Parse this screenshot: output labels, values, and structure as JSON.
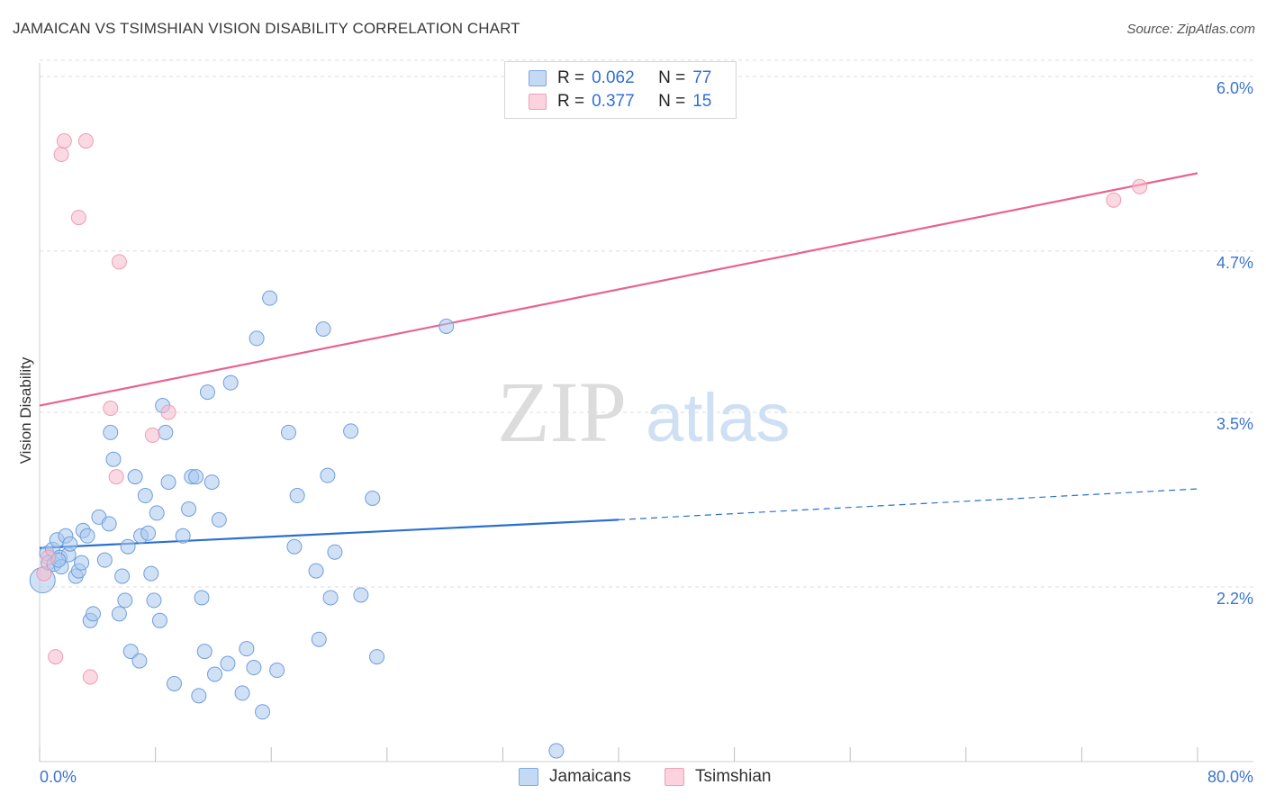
{
  "title": "JAMAICAN VS TSIMSHIAN VISION DISABILITY CORRELATION CHART",
  "source": "Source: ZipAtlas.com",
  "watermark": {
    "zip": "ZIP",
    "atlas": "atlas"
  },
  "legend": {
    "rows": [
      {
        "r_label": "R =",
        "r_value": "0.062",
        "n_label": "N =",
        "n_value": "77",
        "color": "#a9c8ef"
      },
      {
        "r_label": "R =",
        "r_value": "0.377",
        "n_label": "N =",
        "n_value": "15",
        "color": "#f7b9cb"
      }
    ]
  },
  "bottom_legend": [
    {
      "label": "Jamaicans",
      "color": "#a9c8ef"
    },
    {
      "label": "Tsimshian",
      "color": "#f7b9cb"
    }
  ],
  "chart_data": {
    "type": "scatter",
    "title": "JAMAICAN VS TSIMSHIAN VISION DISABILITY CORRELATION CHART",
    "xlabel": "",
    "ylabel": "Vision Disability",
    "xlim": [
      0,
      80
    ],
    "ylim": [
      0.9,
      6.1
    ],
    "x_tick_labels": [
      "0.0%",
      "80.0%"
    ],
    "y_ticks": [
      2.2,
      3.5,
      4.7,
      6.0
    ],
    "y_tick_labels": [
      "2.2%",
      "3.5%",
      "4.7%",
      "6.0%"
    ],
    "grid": true,
    "legend_position": "top-center",
    "series": [
      {
        "name": "Jamaicans",
        "color": "#2b6fd0",
        "fill": "#a9c8ef",
        "points": [
          [
            0.2,
            2.25
          ],
          [
            0.5,
            2.45
          ],
          [
            0.6,
            2.38
          ],
          [
            0.9,
            2.48
          ],
          [
            1.0,
            2.37
          ],
          [
            1.2,
            2.55
          ],
          [
            1.4,
            2.42
          ],
          [
            1.5,
            2.35
          ],
          [
            1.8,
            2.58
          ],
          [
            2.0,
            2.44
          ],
          [
            2.5,
            2.28
          ],
          [
            2.7,
            2.32
          ],
          [
            2.9,
            2.38
          ],
          [
            3.0,
            2.62
          ],
          [
            3.3,
            2.58
          ],
          [
            3.5,
            1.95
          ],
          [
            3.7,
            2.0
          ],
          [
            4.1,
            2.72
          ],
          [
            4.5,
            2.4
          ],
          [
            4.8,
            2.67
          ],
          [
            4.9,
            3.35
          ],
          [
            5.1,
            3.15
          ],
          [
            5.5,
            2.0
          ],
          [
            5.7,
            2.28
          ],
          [
            5.9,
            2.1
          ],
          [
            6.1,
            2.5
          ],
          [
            6.3,
            1.72
          ],
          [
            6.6,
            3.02
          ],
          [
            6.9,
            1.65
          ],
          [
            7.0,
            2.58
          ],
          [
            7.3,
            2.88
          ],
          [
            7.5,
            2.6
          ],
          [
            7.7,
            2.3
          ],
          [
            7.9,
            2.1
          ],
          [
            8.1,
            2.75
          ],
          [
            8.3,
            1.95
          ],
          [
            8.5,
            3.55
          ],
          [
            8.7,
            3.35
          ],
          [
            8.9,
            2.98
          ],
          [
            9.3,
            1.48
          ],
          [
            9.9,
            2.58
          ],
          [
            10.3,
            2.78
          ],
          [
            10.5,
            3.02
          ],
          [
            10.8,
            3.02
          ],
          [
            11.0,
            1.39
          ],
          [
            11.2,
            2.12
          ],
          [
            11.4,
            1.72
          ],
          [
            11.6,
            3.65
          ],
          [
            11.9,
            2.98
          ],
          [
            12.1,
            1.55
          ],
          [
            12.4,
            2.7
          ],
          [
            13.0,
            1.63
          ],
          [
            13.2,
            3.72
          ],
          [
            14.0,
            1.41
          ],
          [
            14.3,
            1.74
          ],
          [
            14.8,
            1.6
          ],
          [
            15.0,
            4.05
          ],
          [
            15.4,
            1.27
          ],
          [
            15.9,
            4.35
          ],
          [
            16.4,
            1.58
          ],
          [
            17.2,
            3.35
          ],
          [
            17.6,
            2.5
          ],
          [
            17.8,
            2.88
          ],
          [
            19.1,
            2.32
          ],
          [
            19.3,
            1.81
          ],
          [
            19.6,
            4.12
          ],
          [
            19.9,
            3.03
          ],
          [
            20.1,
            2.12
          ],
          [
            20.4,
            2.46
          ],
          [
            21.5,
            3.36
          ],
          [
            22.2,
            2.14
          ],
          [
            23.0,
            2.86
          ],
          [
            23.3,
            1.68
          ],
          [
            28.1,
            4.14
          ],
          [
            35.7,
            0.98
          ],
          [
            1.3,
            2.4
          ],
          [
            2.1,
            2.52
          ]
        ],
        "trend": {
          "x0": 0,
          "y0": 2.49,
          "x1": 40,
          "y1": 2.7,
          "dash_to_x": 80,
          "dash_to_y": 2.93
        }
      },
      {
        "name": "Tsimshian",
        "color": "#e8638f",
        "fill": "#f7b9cb",
        "points": [
          [
            0.3,
            2.3
          ],
          [
            0.6,
            2.42
          ],
          [
            1.1,
            1.68
          ],
          [
            1.5,
            5.42
          ],
          [
            1.7,
            5.52
          ],
          [
            2.7,
            4.95
          ],
          [
            3.2,
            5.52
          ],
          [
            3.5,
            1.53
          ],
          [
            4.9,
            3.53
          ],
          [
            5.3,
            3.02
          ],
          [
            5.5,
            4.62
          ],
          [
            7.8,
            3.33
          ],
          [
            8.9,
            3.5
          ],
          [
            74.2,
            5.08
          ],
          [
            76.0,
            5.18
          ]
        ],
        "trend": {
          "x0": 0,
          "y0": 3.55,
          "x1": 80,
          "y1": 5.28
        }
      }
    ]
  }
}
